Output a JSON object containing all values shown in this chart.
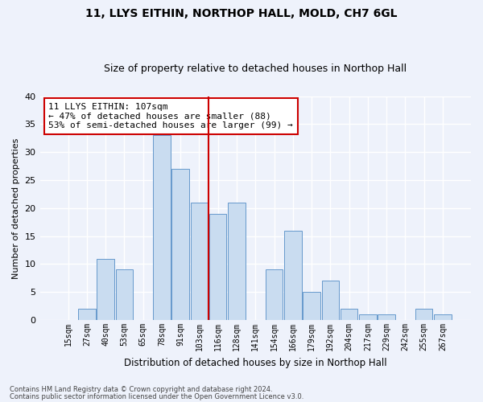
{
  "title": "11, LLYS EITHIN, NORTHOP HALL, MOLD, CH7 6GL",
  "subtitle": "Size of property relative to detached houses in Northop Hall",
  "xlabel": "Distribution of detached houses by size in Northop Hall",
  "ylabel": "Number of detached properties",
  "footer_line1": "Contains HM Land Registry data © Crown copyright and database right 2024.",
  "footer_line2": "Contains public sector information licensed under the Open Government Licence v3.0.",
  "bar_labels": [
    "15sqm",
    "27sqm",
    "40sqm",
    "53sqm",
    "65sqm",
    "78sqm",
    "91sqm",
    "103sqm",
    "116sqm",
    "128sqm",
    "141sqm",
    "154sqm",
    "166sqm",
    "179sqm",
    "192sqm",
    "204sqm",
    "217sqm",
    "229sqm",
    "242sqm",
    "255sqm",
    "267sqm"
  ],
  "bar_values": [
    0,
    2,
    11,
    9,
    0,
    33,
    27,
    21,
    19,
    21,
    0,
    9,
    16,
    5,
    7,
    2,
    1,
    1,
    0,
    2,
    1
  ],
  "bar_color": "#c9dcf0",
  "bar_edge_color": "#6699cc",
  "bg_color": "#eef2fb",
  "grid_color": "#ffffff",
  "vline_color": "#cc0000",
  "annotation_text": "11 LLYS EITHIN: 107sqm\n← 47% of detached houses are smaller (88)\n53% of semi-detached houses are larger (99) →",
  "annotation_box_color": "white",
  "annotation_box_edge_color": "#cc0000",
  "ylim": [
    0,
    40
  ],
  "yticks": [
    0,
    5,
    10,
    15,
    20,
    25,
    30,
    35,
    40
  ],
  "bin_width": 13
}
